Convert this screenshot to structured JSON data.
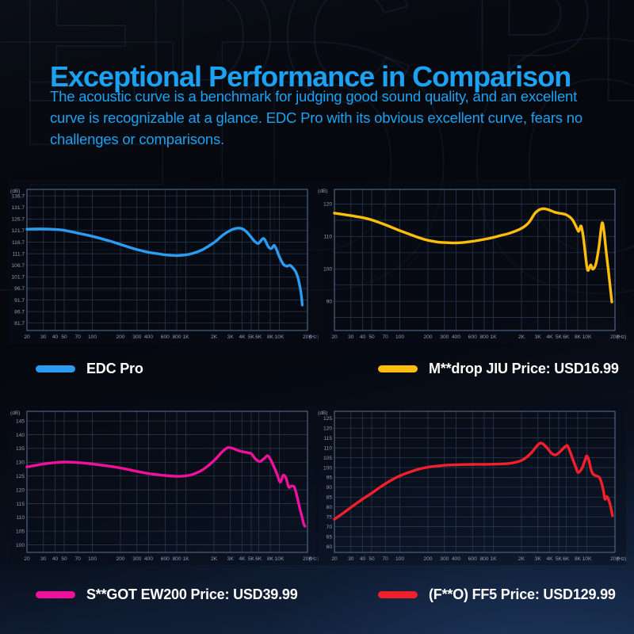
{
  "watermark": {
    "text": "EDC PRO"
  },
  "header": {
    "title": "Exceptional Performance in Comparison",
    "subtitle_lines": [
      "The acoustic curve is a benchmark for judging good sound quality, and an excellent",
      "curve is recognizable at a glance. EDC Pro with its obvious excellent curve, fears no",
      "challenges or comparisons."
    ],
    "accent_color": "#1ca2f2"
  },
  "chart_style": {
    "grid": "#2c3b54",
    "frame": "#5d7296",
    "tick_text": "#8b9cb8",
    "panel_bg": "rgba(8,13,24,0.45)"
  },
  "chart_data": [
    {
      "type": "line",
      "name": "edc-pro",
      "legend": {
        "label": "EDC Pro"
      },
      "color": "#2b9cf2",
      "x_scale": "log",
      "xlim": [
        20,
        20000
      ],
      "ylim": [
        78.5,
        139.5
      ],
      "x_unit": "(Hz)",
      "y_unit": "(dB)",
      "x_ticks": [
        20,
        30,
        40,
        50,
        70,
        100,
        200,
        300,
        400,
        600,
        800,
        1000,
        2000,
        3000,
        4000,
        5000,
        6000,
        8000,
        10000,
        20000
      ],
      "x_tick_labels": [
        "20",
        "30",
        "40",
        "50",
        "70",
        "100",
        "200",
        "300",
        "400",
        "600",
        "800",
        "1K",
        "2K",
        "3K",
        "4K",
        "5K",
        "6K",
        "8K",
        "10K",
        "20K"
      ],
      "y_ticks": [
        {
          "v": 136.7,
          "l": "136.7"
        },
        {
          "v": 131.7,
          "l": "131.7"
        },
        {
          "v": 126.7,
          "l": "126.7"
        },
        {
          "v": 121.7,
          "l": "121.7"
        },
        {
          "v": 116.7,
          "l": "116.7"
        },
        {
          "v": 111.7,
          "l": "111.7"
        },
        {
          "v": 106.7,
          "l": "106.7"
        },
        {
          "v": 101.7,
          "l": "101.7"
        },
        {
          "v": 96.7,
          "l": "96.7"
        },
        {
          "v": 91.7,
          "l": "91.7"
        },
        {
          "v": 86.7,
          "l": "86.7"
        },
        {
          "v": 81.7,
          "l": "81.7"
        }
      ],
      "points": [
        [
          20,
          122.3
        ],
        [
          30,
          122.4
        ],
        [
          40,
          122.2
        ],
        [
          50,
          121.8
        ],
        [
          70,
          120.6
        ],
        [
          100,
          119.2
        ],
        [
          150,
          117.3
        ],
        [
          200,
          115.7
        ],
        [
          300,
          113.5
        ],
        [
          400,
          112.3
        ],
        [
          500,
          111.7
        ],
        [
          600,
          111.2
        ],
        [
          700,
          111.0
        ],
        [
          800,
          110.9
        ],
        [
          1000,
          111.2
        ],
        [
          1200,
          111.9
        ],
        [
          1500,
          113.4
        ],
        [
          2000,
          116.5
        ],
        [
          2500,
          119.8
        ],
        [
          3000,
          121.8
        ],
        [
          3500,
          122.7
        ],
        [
          4000,
          122.5
        ],
        [
          4500,
          121.0
        ],
        [
          5000,
          118.8
        ],
        [
          5500,
          116.9
        ],
        [
          6000,
          116.2
        ],
        [
          6800,
          118.3
        ],
        [
          7600,
          114.8
        ],
        [
          8200,
          113.9
        ],
        [
          8800,
          115.3
        ],
        [
          9400,
          113.2
        ],
        [
          10000,
          110.4
        ],
        [
          11000,
          107.2
        ],
        [
          12000,
          106.3
        ],
        [
          13000,
          106.7
        ],
        [
          14000,
          105.5
        ],
        [
          15000,
          103.8
        ],
        [
          16000,
          100.5
        ],
        [
          17000,
          95.0
        ],
        [
          17600,
          89.5
        ]
      ]
    },
    {
      "type": "line",
      "name": "m-drop-jiu",
      "legend": {
        "label": "M**drop JIU Price: USD16.99"
      },
      "color": "#fcbd0c",
      "x_scale": "log",
      "xlim": [
        20,
        20000
      ],
      "ylim": [
        81,
        124.5
      ],
      "x_unit": "(Hz)",
      "y_unit": "(dB)",
      "x_ticks": [
        20,
        30,
        40,
        50,
        70,
        100,
        200,
        300,
        400,
        600,
        800,
        1000,
        2000,
        3000,
        4000,
        5000,
        6000,
        8000,
        10000,
        20000
      ],
      "x_tick_labels": [
        "20",
        "30",
        "40",
        "50",
        "70",
        "100",
        "200",
        "300",
        "400",
        "600",
        "800",
        "1K",
        "2K",
        "3K",
        "4K",
        "5K",
        "6K",
        "8K",
        "10K",
        "20K"
      ],
      "y_ticks": [
        {
          "v": 120,
          "l": "120"
        },
        {
          "v": 115,
          "l": ""
        },
        {
          "v": 110,
          "l": "110"
        },
        {
          "v": 105,
          "l": ""
        },
        {
          "v": 100,
          "l": "100"
        },
        {
          "v": 95,
          "l": ""
        },
        {
          "v": 90,
          "l": "90"
        },
        {
          "v": 85,
          "l": ""
        }
      ],
      "points": [
        [
          20,
          117.2
        ],
        [
          30,
          116.4
        ],
        [
          40,
          115.8
        ],
        [
          50,
          115.1
        ],
        [
          70,
          113.6
        ],
        [
          100,
          111.8
        ],
        [
          150,
          109.9
        ],
        [
          200,
          108.8
        ],
        [
          250,
          108.3
        ],
        [
          300,
          108.1
        ],
        [
          400,
          108.0
        ],
        [
          500,
          108.2
        ],
        [
          600,
          108.5
        ],
        [
          800,
          109.1
        ],
        [
          1000,
          109.7
        ],
        [
          1200,
          110.3
        ],
        [
          1500,
          111.0
        ],
        [
          2000,
          112.5
        ],
        [
          2400,
          114.3
        ],
        [
          2800,
          117.2
        ],
        [
          3200,
          118.4
        ],
        [
          3600,
          118.5
        ],
        [
          4000,
          118.1
        ],
        [
          4500,
          117.5
        ],
        [
          5000,
          117.2
        ],
        [
          6000,
          116.7
        ],
        [
          7000,
          115.2
        ],
        [
          7800,
          112.6
        ],
        [
          8200,
          111.6
        ],
        [
          8700,
          113.2
        ],
        [
          9200,
          109.5
        ],
        [
          10000,
          100.8
        ],
        [
          10400,
          99.6
        ],
        [
          11000,
          101.2
        ],
        [
          11600,
          99.9
        ],
        [
          12500,
          101.5
        ],
        [
          13500,
          107.0
        ],
        [
          14500,
          114.0
        ],
        [
          15200,
          112.0
        ],
        [
          16000,
          106.0
        ],
        [
          17000,
          99.5
        ],
        [
          18500,
          89.8
        ]
      ]
    },
    {
      "type": "line",
      "name": "s-got-ew200",
      "legend": {
        "label": "S**GOT EW200 Price: USD39.99"
      },
      "color": "#ef109c",
      "x_scale": "log",
      "xlim": [
        20,
        20000
      ],
      "ylim": [
        97.3,
        148.5
      ],
      "x_unit": "(Hz)",
      "y_unit": "(dB)",
      "x_ticks": [
        20,
        30,
        40,
        50,
        70,
        100,
        200,
        300,
        400,
        600,
        800,
        1000,
        2000,
        3000,
        4000,
        5000,
        6000,
        8000,
        10000,
        20000
      ],
      "x_tick_labels": [
        "20",
        "30",
        "40",
        "50",
        "70",
        "100",
        "200",
        "300",
        "400",
        "600",
        "800",
        "1K",
        "2K",
        "3K",
        "4K",
        "5K",
        "6K",
        "8K",
        "10K",
        "20K"
      ],
      "y_ticks": [
        {
          "v": 145,
          "l": "145"
        },
        {
          "v": 140,
          "l": "140"
        },
        {
          "v": 135,
          "l": "135"
        },
        {
          "v": 130,
          "l": "130"
        },
        {
          "v": 125,
          "l": "125"
        },
        {
          "v": 120,
          "l": "120"
        },
        {
          "v": 115,
          "l": "115"
        },
        {
          "v": 110,
          "l": "110"
        },
        {
          "v": 105,
          "l": "105"
        },
        {
          "v": 100,
          "l": "100"
        }
      ],
      "points": [
        [
          20,
          128.3
        ],
        [
          30,
          129.4
        ],
        [
          40,
          129.9
        ],
        [
          50,
          130.1
        ],
        [
          70,
          129.9
        ],
        [
          100,
          129.4
        ],
        [
          150,
          128.6
        ],
        [
          200,
          127.9
        ],
        [
          300,
          126.7
        ],
        [
          400,
          125.9
        ],
        [
          500,
          125.5
        ],
        [
          600,
          125.2
        ],
        [
          800,
          124.9
        ],
        [
          1000,
          125.1
        ],
        [
          1200,
          125.7
        ],
        [
          1500,
          127.2
        ],
        [
          2000,
          130.6
        ],
        [
          2400,
          133.5
        ],
        [
          2800,
          135.3
        ],
        [
          3200,
          135.0
        ],
        [
          3600,
          134.3
        ],
        [
          4000,
          133.9
        ],
        [
          4500,
          133.5
        ],
        [
          5000,
          133.1
        ],
        [
          5600,
          131.1
        ],
        [
          6200,
          130.3
        ],
        [
          7000,
          131.6
        ],
        [
          7500,
          132.4
        ],
        [
          8000,
          131.2
        ],
        [
          8700,
          128.6
        ],
        [
          9400,
          125.9
        ],
        [
          10200,
          122.8
        ],
        [
          11000,
          125.3
        ],
        [
          11800,
          124.2
        ],
        [
          12600,
          121.0
        ],
        [
          13500,
          121.4
        ],
        [
          14500,
          120.9
        ],
        [
          15500,
          117.5
        ],
        [
          16500,
          113.5
        ],
        [
          17500,
          110.0
        ],
        [
          18300,
          107.5
        ],
        [
          18800,
          106.8
        ]
      ]
    },
    {
      "type": "line",
      "name": "f-o-ff5",
      "legend": {
        "label": "(F**O) FF5 Price: USD129.99"
      },
      "color": "#f2202c",
      "x_scale": "log",
      "xlim": [
        20,
        20000
      ],
      "ylim": [
        57,
        128.5
      ],
      "x_unit": "(Hz)",
      "y_unit": "(dB)",
      "x_ticks": [
        20,
        30,
        40,
        50,
        70,
        100,
        200,
        300,
        400,
        600,
        800,
        1000,
        2000,
        3000,
        4000,
        5000,
        6000,
        8000,
        10000,
        20000
      ],
      "x_tick_labels": [
        "20",
        "30",
        "40",
        "50",
        "70",
        "100",
        "200",
        "300",
        "400",
        "600",
        "800",
        "1K",
        "2K",
        "3K",
        "4K",
        "5K",
        "6K",
        "8K",
        "10K",
        "20K"
      ],
      "y_ticks": [
        {
          "v": 125,
          "l": "125"
        },
        {
          "v": 120,
          "l": "120"
        },
        {
          "v": 115,
          "l": "115"
        },
        {
          "v": 110,
          "l": "110"
        },
        {
          "v": 105,
          "l": "105"
        },
        {
          "v": 100,
          "l": "100"
        },
        {
          "v": 95,
          "l": "95"
        },
        {
          "v": 90,
          "l": "90"
        },
        {
          "v": 85,
          "l": "85"
        },
        {
          "v": 80,
          "l": "80"
        },
        {
          "v": 75,
          "l": "75"
        },
        {
          "v": 70,
          "l": "70"
        },
        {
          "v": 65,
          "l": "65"
        },
        {
          "v": 60,
          "l": "60"
        }
      ],
      "points": [
        [
          20,
          73.8
        ],
        [
          25,
          77.0
        ],
        [
          30,
          79.8
        ],
        [
          40,
          84.0
        ],
        [
          50,
          87.0
        ],
        [
          70,
          91.8
        ],
        [
          100,
          95.8
        ],
        [
          150,
          98.8
        ],
        [
          200,
          100.2
        ],
        [
          300,
          101.1
        ],
        [
          400,
          101.4
        ],
        [
          600,
          101.6
        ],
        [
          800,
          101.6
        ],
        [
          1000,
          101.7
        ],
        [
          1500,
          102.1
        ],
        [
          2000,
          103.6
        ],
        [
          2500,
          107.0
        ],
        [
          3000,
          111.5
        ],
        [
          3300,
          112.3
        ],
        [
          3700,
          110.3
        ],
        [
          4200,
          107.2
        ],
        [
          4600,
          106.4
        ],
        [
          5000,
          107.4
        ],
        [
          5500,
          109.3
        ],
        [
          6000,
          110.9
        ],
        [
          6300,
          110.6
        ],
        [
          7000,
          104.8
        ],
        [
          7600,
          100.3
        ],
        [
          8000,
          97.6
        ],
        [
          8500,
          98.3
        ],
        [
          9000,
          100.2
        ],
        [
          9600,
          104.0
        ],
        [
          10000,
          105.9
        ],
        [
          10500,
          103.8
        ],
        [
          11000,
          99.6
        ],
        [
          11600,
          96.8
        ],
        [
          12500,
          95.8
        ],
        [
          13500,
          95.2
        ],
        [
          14200,
          93.0
        ],
        [
          15000,
          88.5
        ],
        [
          15600,
          84.0
        ],
        [
          16300,
          85.3
        ],
        [
          17000,
          84.0
        ],
        [
          17800,
          81.0
        ],
        [
          18800,
          75.6
        ]
      ]
    }
  ]
}
